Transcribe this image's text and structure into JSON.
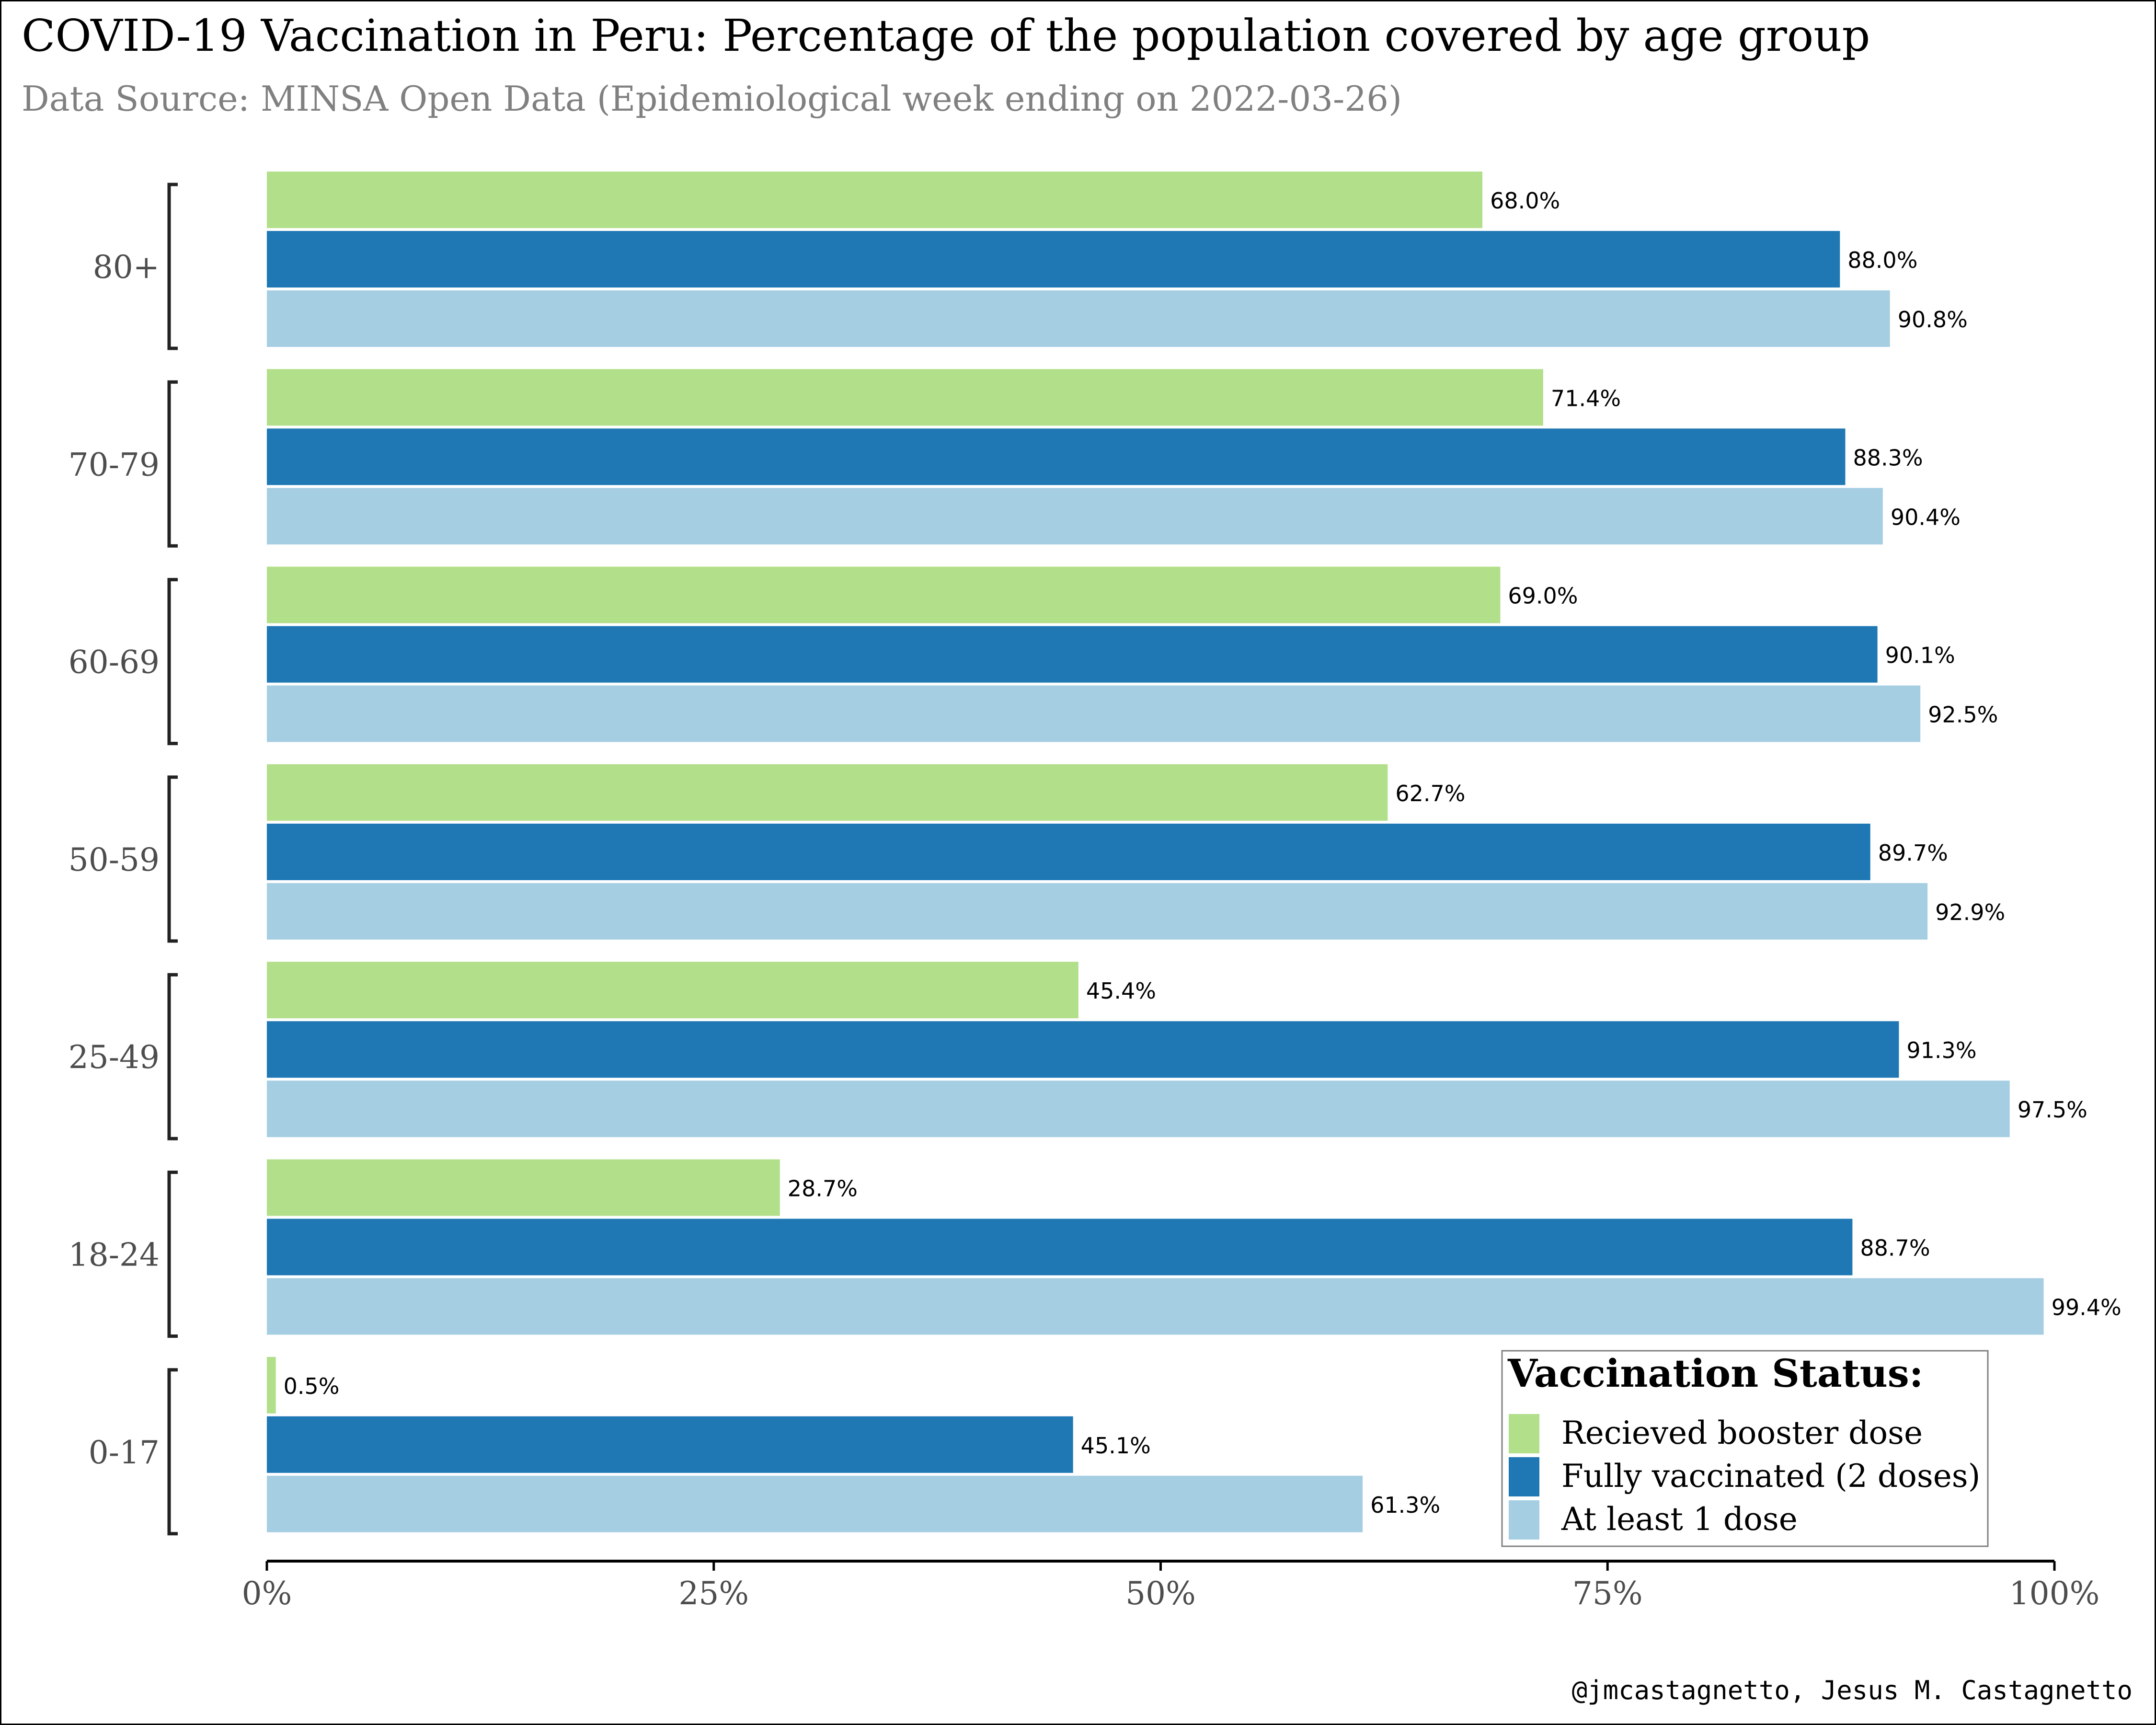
{
  "chart_data": {
    "type": "bar",
    "orientation": "horizontal",
    "title": "COVID-19 Vaccination in Peru: Percentage of the population covered by age group",
    "subtitle": "Data Source: MINSA Open Data (Epidemiological week ending on 2022-03-26)",
    "credit": "@jmcastagnetto, Jesus M. Castagnetto",
    "categories": [
      "80+",
      "70-79",
      "60-69",
      "50-59",
      "25-49",
      "18-24",
      "0-17"
    ],
    "series": [
      {
        "name": "Recieved booster dose",
        "color": "#b2df8a",
        "values": [
          68.0,
          71.4,
          69.0,
          62.7,
          45.4,
          28.7,
          0.5
        ]
      },
      {
        "name": "Fully vaccinated (2 doses)",
        "color": "#1f78b4",
        "values": [
          88.0,
          88.3,
          90.1,
          89.7,
          91.3,
          88.7,
          45.1
        ]
      },
      {
        "name": "At least 1 dose",
        "color": "#a6cee3",
        "values": [
          90.8,
          90.4,
          92.5,
          92.9,
          97.5,
          99.4,
          61.3
        ]
      }
    ],
    "value_format": "%.1f%",
    "xlim": [
      0,
      100
    ],
    "xticks": [
      0,
      25,
      50,
      75,
      100
    ],
    "xtick_labels": [
      "0%",
      "25%",
      "50%",
      "75%",
      "100%"
    ],
    "grid": false,
    "legend": {
      "title": "Vaccination Status:",
      "placement": "bottom-right"
    }
  }
}
